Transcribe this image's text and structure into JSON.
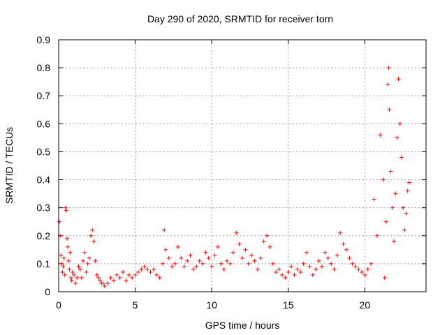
{
  "chart_data": {
    "type": "scatter",
    "title": "Day 290 of 2020, SRMTID for receiver torn",
    "xlabel": "GPS time / hours",
    "ylabel": "SRMTID / TECUs",
    "xlim": [
      0,
      24
    ],
    "ylim": [
      0,
      0.9
    ],
    "xticks": [
      0,
      5,
      10,
      15,
      20
    ],
    "xtick_labels": [
      "0",
      "5",
      "10",
      "15",
      "20"
    ],
    "yticks": [
      0,
      0.1,
      0.2,
      0.3,
      0.4,
      0.5,
      0.6,
      0.7,
      0.8,
      0.9
    ],
    "ytick_labels": [
      "0",
      "0.1",
      "0.2",
      "0.3",
      "0.4",
      "0.5",
      "0.6",
      "0.7",
      "0.8",
      "0.9"
    ],
    "grid": true,
    "marker": "+",
    "series_color": "#ff0000",
    "series": [
      {
        "name": "SRMTID",
        "points": [
          [
            0.05,
            0.25
          ],
          [
            0.1,
            0.2
          ],
          [
            0.15,
            0.13
          ],
          [
            0.2,
            0.1
          ],
          [
            0.25,
            0.07
          ],
          [
            0.3,
            0.09
          ],
          [
            0.35,
            0.12
          ],
          [
            0.4,
            0.06
          ],
          [
            0.45,
            0.3
          ],
          [
            0.5,
            0.29
          ],
          [
            0.55,
            0.19
          ],
          [
            0.6,
            0.16
          ],
          [
            0.65,
            0.11
          ],
          [
            0.7,
            0.08
          ],
          [
            0.75,
            0.14
          ],
          [
            0.8,
            0.05
          ],
          [
            0.85,
            0.04
          ],
          [
            0.9,
            0.07
          ],
          [
            1.0,
            0.06
          ],
          [
            1.1,
            0.03
          ],
          [
            1.2,
            0.05
          ],
          [
            1.3,
            0.09
          ],
          [
            1.4,
            0.08
          ],
          [
            1.5,
            0.05
          ],
          [
            1.6,
            0.11
          ],
          [
            1.7,
            0.14
          ],
          [
            1.8,
            0.07
          ],
          [
            1.9,
            0.1
          ],
          [
            2.0,
            0.12
          ],
          [
            2.1,
            0.2
          ],
          [
            2.2,
            0.22
          ],
          [
            2.3,
            0.18
          ],
          [
            2.4,
            0.11
          ],
          [
            2.5,
            0.06
          ],
          [
            2.6,
            0.05
          ],
          [
            2.7,
            0.04
          ],
          [
            2.8,
            0.03
          ],
          [
            2.9,
            0.03
          ],
          [
            3.0,
            0.02
          ],
          [
            3.2,
            0.03
          ],
          [
            3.4,
            0.05
          ],
          [
            3.6,
            0.04
          ],
          [
            3.8,
            0.06
          ],
          [
            4.0,
            0.05
          ],
          [
            4.2,
            0.07
          ],
          [
            4.4,
            0.04
          ],
          [
            4.6,
            0.06
          ],
          [
            4.8,
            0.05
          ],
          [
            5.0,
            0.06
          ],
          [
            5.2,
            0.07
          ],
          [
            5.4,
            0.08
          ],
          [
            5.6,
            0.09
          ],
          [
            5.8,
            0.08
          ],
          [
            6.0,
            0.07
          ],
          [
            6.2,
            0.08
          ],
          [
            6.4,
            0.06
          ],
          [
            6.6,
            0.05
          ],
          [
            6.8,
            0.1
          ],
          [
            6.9,
            0.22
          ],
          [
            7.0,
            0.15
          ],
          [
            7.2,
            0.12
          ],
          [
            7.4,
            0.09
          ],
          [
            7.6,
            0.1
          ],
          [
            7.8,
            0.16
          ],
          [
            8.0,
            0.12
          ],
          [
            8.2,
            0.09
          ],
          [
            8.4,
            0.11
          ],
          [
            8.6,
            0.13
          ],
          [
            8.8,
            0.08
          ],
          [
            9.0,
            0.09
          ],
          [
            9.2,
            0.11
          ],
          [
            9.4,
            0.1
          ],
          [
            9.6,
            0.14
          ],
          [
            9.8,
            0.12
          ],
          [
            10.0,
            0.09
          ],
          [
            10.2,
            0.13
          ],
          [
            10.4,
            0.16
          ],
          [
            10.6,
            0.1
          ],
          [
            10.8,
            0.08
          ],
          [
            11.0,
            0.11
          ],
          [
            11.2,
            0.1
          ],
          [
            11.4,
            0.14
          ],
          [
            11.6,
            0.21
          ],
          [
            11.8,
            0.17
          ],
          [
            12.0,
            0.12
          ],
          [
            12.2,
            0.15
          ],
          [
            12.4,
            0.1
          ],
          [
            12.6,
            0.13
          ],
          [
            12.8,
            0.11
          ],
          [
            13.0,
            0.08
          ],
          [
            13.2,
            0.12
          ],
          [
            13.4,
            0.18
          ],
          [
            13.6,
            0.2
          ],
          [
            13.8,
            0.16
          ],
          [
            14.0,
            0.1
          ],
          [
            14.2,
            0.07
          ],
          [
            14.4,
            0.08
          ],
          [
            14.6,
            0.06
          ],
          [
            14.8,
            0.05
          ],
          [
            15.0,
            0.07
          ],
          [
            15.2,
            0.09
          ],
          [
            15.4,
            0.06
          ],
          [
            15.6,
            0.08
          ],
          [
            15.8,
            0.07
          ],
          [
            16.0,
            0.1
          ],
          [
            16.2,
            0.14
          ],
          [
            16.4,
            0.09
          ],
          [
            16.6,
            0.06
          ],
          [
            16.8,
            0.08
          ],
          [
            17.0,
            0.11
          ],
          [
            17.2,
            0.09
          ],
          [
            17.4,
            0.14
          ],
          [
            17.6,
            0.12
          ],
          [
            17.8,
            0.1
          ],
          [
            18.0,
            0.08
          ],
          [
            18.2,
            0.13
          ],
          [
            18.4,
            0.21
          ],
          [
            18.6,
            0.17
          ],
          [
            18.8,
            0.15
          ],
          [
            19.0,
            0.12
          ],
          [
            19.2,
            0.1
          ],
          [
            19.4,
            0.09
          ],
          [
            19.6,
            0.08
          ],
          [
            19.8,
            0.07
          ],
          [
            20.0,
            0.06
          ],
          [
            20.2,
            0.08
          ],
          [
            20.4,
            0.1
          ],
          [
            20.6,
            0.33
          ],
          [
            20.8,
            0.2
          ],
          [
            21.0,
            0.56
          ],
          [
            21.2,
            0.4
          ],
          [
            21.3,
            0.05
          ],
          [
            21.4,
            0.25
          ],
          [
            21.5,
            0.74
          ],
          [
            21.55,
            0.8
          ],
          [
            21.6,
            0.65
          ],
          [
            21.7,
            0.43
          ],
          [
            21.8,
            0.3
          ],
          [
            21.9,
            0.18
          ],
          [
            22.0,
            0.35
          ],
          [
            22.1,
            0.55
          ],
          [
            22.2,
            0.76
          ],
          [
            22.3,
            0.6
          ],
          [
            22.4,
            0.48
          ],
          [
            22.5,
            0.3
          ],
          [
            22.6,
            0.22
          ],
          [
            22.7,
            0.28
          ],
          [
            22.8,
            0.36
          ],
          [
            22.9,
            0.39
          ]
        ]
      }
    ]
  }
}
